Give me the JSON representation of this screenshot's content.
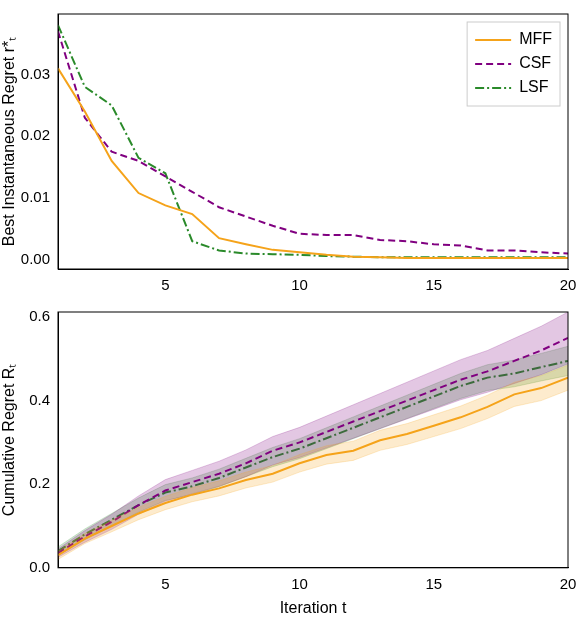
{
  "chart_data": [
    {
      "type": "line",
      "y_label": "Best Instantaneous Regret r*ₜ",
      "x": [
        1,
        2,
        3,
        4,
        5,
        6,
        7,
        8,
        9,
        10,
        11,
        12,
        13,
        14,
        15,
        16,
        17,
        18,
        19,
        20
      ],
      "xlim": [
        1,
        20
      ],
      "xticks": [
        5,
        10,
        15,
        20
      ],
      "ylim": [
        -0.0015,
        0.0398
      ],
      "yticks": [
        {
          "value": 0,
          "label": "0.00"
        },
        {
          "value": 0.01,
          "label": "0.01"
        },
        {
          "value": 0.02,
          "label": "0.02"
        },
        {
          "value": 0.03,
          "label": "0.03"
        }
      ],
      "grid": false,
      "legend": "upper right",
      "series": [
        {
          "name": "MFF",
          "color": "#f5a31a",
          "line_style": "solid",
          "marker": "none",
          "values": [
            0.031,
            0.024,
            0.016,
            0.0108,
            0.0088,
            0.0074,
            0.0035,
            0.0025,
            0.0016,
            0.0012,
            0.0008,
            0.0005,
            0.0004,
            0.0003,
            0.0003,
            0.0003,
            0.0003,
            0.0003,
            0.0003,
            0.0003
          ]
        },
        {
          "name": "CSF",
          "color": "#800080",
          "line_style": "dashed",
          "marker": "none",
          "values": [
            0.037,
            0.023,
            0.0175,
            0.016,
            0.0135,
            0.011,
            0.0085,
            0.007,
            0.0055,
            0.0042,
            0.004,
            0.004,
            0.0032,
            0.003,
            0.0025,
            0.0023,
            0.0015,
            0.0015,
            0.0012,
            0.001
          ]
        },
        {
          "name": "LSF",
          "color": "#2a8a2a",
          "line_style": "dashdot",
          "marker": "none",
          "values": [
            0.038,
            0.028,
            0.025,
            0.0165,
            0.014,
            0.003,
            0.0015,
            0.001,
            0.0009,
            0.0008,
            0.0006,
            0.0005,
            0.0004,
            0.0004,
            0.0004,
            0.0004,
            0.0004,
            0.0004,
            0.0004,
            0.0004
          ]
        }
      ]
    },
    {
      "type": "line",
      "x_label": "Iteration t",
      "y_label": "Cumulative Regret Rₜ",
      "x": [
        1,
        2,
        3,
        4,
        5,
        6,
        7,
        8,
        9,
        10,
        11,
        12,
        13,
        14,
        15,
        16,
        17,
        18,
        19,
        20
      ],
      "xlim": [
        1,
        20
      ],
      "xticks": [
        5,
        10,
        15,
        20
      ],
      "ylim": [
        0,
        0.612
      ],
      "yticks": [
        {
          "value": 0,
          "label": "0.0"
        },
        {
          "value": 0.2,
          "label": "0.2"
        },
        {
          "value": 0.4,
          "label": "0.4"
        },
        {
          "value": 0.6,
          "label": "0.6"
        }
      ],
      "grid": false,
      "series": [
        {
          "name": "MFF",
          "color": "#f5a31a",
          "line_style": "solid",
          "marker": "none",
          "values": [
            0.03,
            0.07,
            0.1,
            0.13,
            0.155,
            0.175,
            0.19,
            0.21,
            0.225,
            0.25,
            0.27,
            0.28,
            0.305,
            0.32,
            0.34,
            0.36,
            0.385,
            0.415,
            0.43,
            0.455
          ],
          "error": [
            0.01,
            0.012,
            0.014,
            0.015,
            0.016,
            0.017,
            0.018,
            0.019,
            0.02,
            0.021,
            0.022,
            0.023,
            0.024,
            0.025,
            0.026,
            0.027,
            0.028,
            0.029,
            0.03,
            0.03
          ]
        },
        {
          "name": "CSF",
          "color": "#800080",
          "line_style": "dashed",
          "marker": "none",
          "values": [
            0.035,
            0.075,
            0.11,
            0.15,
            0.185,
            0.205,
            0.225,
            0.25,
            0.28,
            0.3,
            0.325,
            0.35,
            0.375,
            0.4,
            0.425,
            0.45,
            0.47,
            0.495,
            0.52,
            0.55
          ],
          "error": [
            0.01,
            0.014,
            0.018,
            0.022,
            0.026,
            0.028,
            0.03,
            0.032,
            0.034,
            0.036,
            0.038,
            0.04,
            0.042,
            0.044,
            0.046,
            0.048,
            0.05,
            0.054,
            0.058,
            0.062
          ]
        },
        {
          "name": "LSF",
          "color": "#2a8a2a",
          "line_style": "dashdot",
          "marker": "none",
          "values": [
            0.04,
            0.08,
            0.115,
            0.15,
            0.18,
            0.195,
            0.215,
            0.24,
            0.265,
            0.285,
            0.31,
            0.335,
            0.36,
            0.385,
            0.41,
            0.435,
            0.455,
            0.465,
            0.48,
            0.495
          ],
          "error": [
            0.01,
            0.013,
            0.015,
            0.017,
            0.019,
            0.02,
            0.021,
            0.022,
            0.023,
            0.024,
            0.025,
            0.026,
            0.027,
            0.028,
            0.029,
            0.03,
            0.031,
            0.032,
            0.033,
            0.035
          ]
        }
      ]
    }
  ]
}
